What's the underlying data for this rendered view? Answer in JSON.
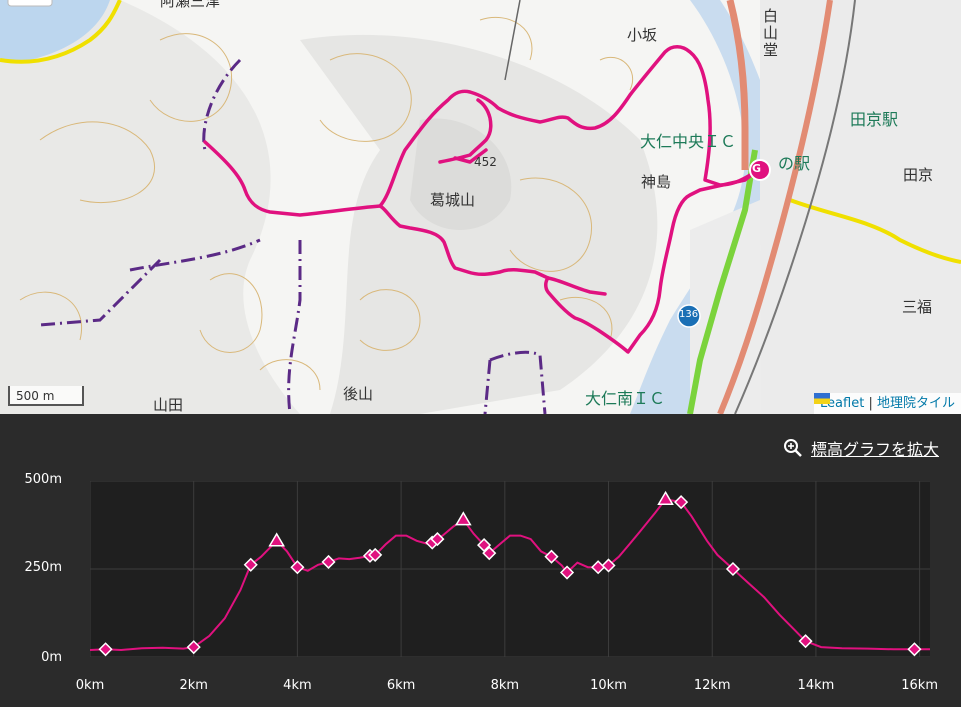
{
  "map": {
    "labels": {
      "kosaka": "小坂",
      "hakusando": "白山堂",
      "tagyo_station": "田京駅",
      "ohito_chuo_ic": "大仁中央ＩＣ",
      "michinoeki": "の駅",
      "kamishima": "神島",
      "tagyo": "田京",
      "katsuragiyama": "葛城山",
      "peak_number": "452",
      "mifuku": "三福",
      "ushiroyama": "後山",
      "yamada": "山田",
      "ohito_minami_ic": "大仁南ＩＣ",
      "route_number": "136",
      "top_left_partial": "阿瀬三津",
      "goal_marker": "G"
    },
    "scale_label": "500 m",
    "attribution": {
      "leaflet": "Leaflet",
      "separator": "|",
      "tiles": "地理院タイル"
    },
    "route_color": "#e0117f"
  },
  "elevation": {
    "expand_label": "標高グラフを拡大",
    "y_ticks": [
      "500m",
      "250m",
      "0m"
    ],
    "x_ticks": [
      "0km",
      "2km",
      "4km",
      "6km",
      "8km",
      "10km",
      "12km",
      "14km",
      "16km"
    ],
    "line_color": "#e0117f"
  },
  "chart_data": {
    "type": "line",
    "title": "",
    "xlabel": "",
    "ylabel": "",
    "xlim": [
      0,
      16.2
    ],
    "ylim": [
      0,
      500
    ],
    "x_unit": "km",
    "y_unit": "m",
    "series": [
      {
        "values": [
          [
            0,
            20
          ],
          [
            0.3,
            22
          ],
          [
            0.6,
            20
          ],
          [
            1.0,
            25
          ],
          [
            1.4,
            26
          ],
          [
            1.8,
            24
          ],
          [
            2.0,
            28
          ],
          [
            2.3,
            60
          ],
          [
            2.6,
            110
          ],
          [
            2.9,
            190
          ],
          [
            3.1,
            262
          ],
          [
            3.3,
            285
          ],
          [
            3.6,
            330
          ],
          [
            3.8,
            300
          ],
          [
            4.0,
            255
          ],
          [
            4.2,
            245
          ],
          [
            4.4,
            262
          ],
          [
            4.6,
            270
          ],
          [
            4.8,
            280
          ],
          [
            5.0,
            278
          ],
          [
            5.2,
            282
          ],
          [
            5.5,
            290
          ],
          [
            5.7,
            320
          ],
          [
            5.9,
            345
          ],
          [
            6.1,
            345
          ],
          [
            6.3,
            330
          ],
          [
            6.5,
            322
          ],
          [
            6.6,
            325
          ],
          [
            6.8,
            345
          ],
          [
            7.0,
            370
          ],
          [
            7.2,
            390
          ],
          [
            7.4,
            350
          ],
          [
            7.6,
            318
          ],
          [
            7.7,
            295
          ],
          [
            7.9,
            320
          ],
          [
            8.1,
            345
          ],
          [
            8.3,
            345
          ],
          [
            8.5,
            335
          ],
          [
            8.7,
            300
          ],
          [
            8.9,
            285
          ],
          [
            9.1,
            260
          ],
          [
            9.2,
            240
          ],
          [
            9.4,
            268
          ],
          [
            9.6,
            255
          ],
          [
            9.8,
            255
          ],
          [
            10.0,
            260
          ],
          [
            10.2,
            285
          ],
          [
            10.4,
            320
          ],
          [
            10.6,
            355
          ],
          [
            10.9,
            410
          ],
          [
            11.1,
            448
          ],
          [
            11.4,
            440
          ],
          [
            11.6,
            400
          ],
          [
            11.9,
            330
          ],
          [
            12.1,
            290
          ],
          [
            12.4,
            250
          ],
          [
            12.7,
            210
          ],
          [
            13.0,
            170
          ],
          [
            13.3,
            120
          ],
          [
            13.6,
            75
          ],
          [
            13.8,
            45
          ],
          [
            14.1,
            28
          ],
          [
            14.5,
            25
          ],
          [
            15.0,
            24
          ],
          [
            15.5,
            22
          ],
          [
            16.0,
            22
          ],
          [
            16.2,
            22
          ]
        ]
      }
    ],
    "diamond_markers_x": [
      0.3,
      2.0,
      3.1,
      4.0,
      4.6,
      5.4,
      5.5,
      6.6,
      6.7,
      7.6,
      7.7,
      8.9,
      9.2,
      9.8,
      10.0,
      11.4,
      12.4,
      13.8,
      15.9
    ],
    "triangle_markers_x": [
      3.6,
      7.2,
      11.1
    ]
  }
}
